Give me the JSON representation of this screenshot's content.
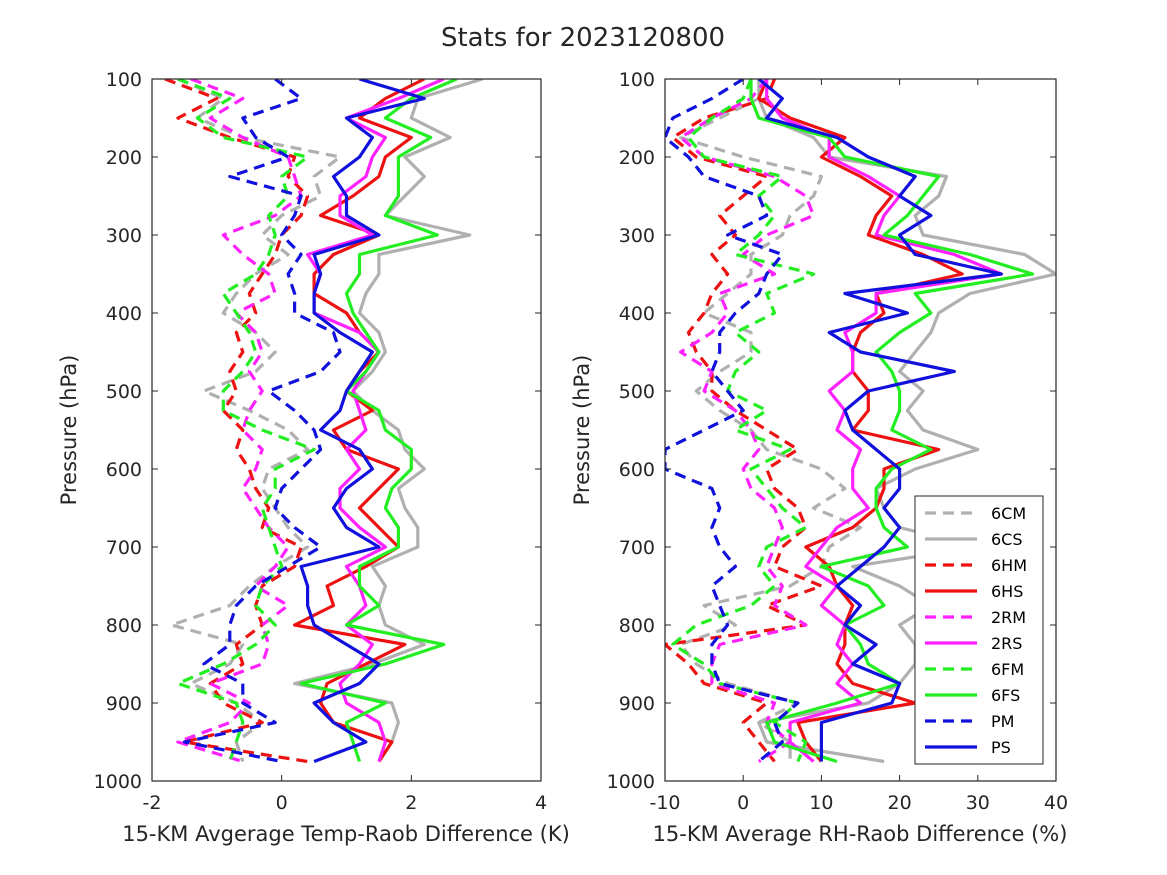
{
  "page_title": "Stats for 2023120800",
  "colors": {
    "6C": "#b0b0b0",
    "6H": "#ee1111",
    "2R": "#ff22ff",
    "6F": "#22ee22",
    "P": "#1111dd"
  },
  "chart_data": [
    {
      "type": "line",
      "xlabel": "15-KM Avgerage Temp-Raob Difference (K)",
      "ylabel": "Pressure (hPa)",
      "xlim": [
        -2,
        4
      ],
      "ylim": [
        1000,
        100
      ],
      "y_reversed": true,
      "xticks": [
        "-2",
        "0",
        "2",
        "4"
      ],
      "yticks": [
        "100",
        "200",
        "300",
        "400",
        "500",
        "600",
        "700",
        "800",
        "900",
        "1000"
      ],
      "grid": false,
      "levels": [
        100,
        125,
        150,
        175,
        200,
        225,
        250,
        275,
        300,
        325,
        350,
        375,
        400,
        425,
        450,
        475,
        500,
        525,
        550,
        575,
        600,
        625,
        650,
        675,
        700,
        725,
        750,
        775,
        800,
        825,
        850,
        875,
        900,
        925,
        950,
        975
      ],
      "series": [
        {
          "name": "6CM",
          "color": "6C",
          "dash": true,
          "values": [
            -1.6,
            -0.9,
            -1.3,
            -0.6,
            0.9,
            0.5,
            0.6,
            0,
            -0.3,
            0.1,
            -0.4,
            -0.7,
            -0.9,
            -0.4,
            -0.1,
            -0.4,
            -1.2,
            -0.5,
            0.1,
            0.4,
            -0.2,
            -0.3,
            -0.1,
            0.1,
            0.4,
            -0.1,
            -0.5,
            -0.8,
            -1.7,
            -0.6,
            -0.8,
            -1.4,
            -0.7,
            -0.3,
            -0.7,
            -0.6
          ]
        },
        {
          "name": "6CS",
          "color": "6C",
          "dash": false,
          "values": [
            3.1,
            2.1,
            2.0,
            2.6,
            1.9,
            2.2,
            1.9,
            1.6,
            2.9,
            1.5,
            1.5,
            1.3,
            1.2,
            1.5,
            1.6,
            1.4,
            1.1,
            1.4,
            1.8,
            1.9,
            2.2,
            1.8,
            1.9,
            2.1,
            2.1,
            1.4,
            1.6,
            1.5,
            1.6,
            2.2,
            1.4,
            0.2,
            1.7,
            1.8,
            1.7,
            1.5
          ]
        },
        {
          "name": "6HM",
          "color": "6H",
          "dash": true,
          "values": [
            -1.8,
            -1.0,
            -1.6,
            -0.8,
            0.2,
            0.1,
            0.4,
            0.3,
            0.0,
            -0.1,
            -0.3,
            -0.5,
            -0.4,
            -0.7,
            -0.6,
            -0.8,
            -0.7,
            -0.9,
            -0.6,
            -0.7,
            -0.5,
            -0.4,
            -0.2,
            -0.3,
            0.3,
            0.2,
            -0.3,
            -0.4,
            -0.3,
            -0.7,
            -0.6,
            -1.1,
            -0.9,
            -0.3,
            -1.5,
            0.4
          ]
        },
        {
          "name": "6HS",
          "color": "6H",
          "dash": false,
          "values": [
            2.2,
            1.6,
            1.2,
            2.0,
            1.6,
            1.5,
            1.1,
            0.6,
            1.5,
            0.8,
            0.5,
            0.5,
            1.0,
            1.2,
            1.5,
            1.2,
            1.0,
            1.4,
            0.8,
            1.0,
            1.8,
            1.5,
            1.2,
            1.5,
            1.8,
            1.3,
            0.7,
            0.8,
            0.2,
            1.9,
            1.3,
            0.7,
            0.6,
            0.8,
            1.7,
            1.5
          ]
        },
        {
          "name": "2RM",
          "color": "2R",
          "dash": true,
          "values": [
            -1.4,
            -0.6,
            -1.1,
            -0.6,
            0.1,
            0.2,
            0.3,
            -0.1,
            -0.9,
            -0.6,
            -0.2,
            -0.1,
            -0.7,
            -0.4,
            -0.3,
            -0.5,
            -0.3,
            -0.5,
            -0.6,
            -0.3,
            -0.4,
            -0.6,
            -0.4,
            -0.2,
            0.1,
            -0.1,
            -0.4,
            0.1,
            -0.3,
            -0.2,
            -0.3,
            -1.1,
            -0.5,
            -0.8,
            -1.6,
            -0.6
          ]
        },
        {
          "name": "2RS",
          "color": "2R",
          "dash": false,
          "values": [
            2.5,
            1.8,
            1.0,
            1.6,
            1.4,
            1.3,
            0.9,
            0.9,
            1.4,
            0.4,
            0.6,
            0.5,
            0.5,
            1.2,
            1.5,
            1.3,
            1.1,
            1.2,
            1.3,
            1.0,
            1.2,
            0.9,
            0.9,
            1.2,
            1.6,
            1.0,
            1.2,
            1.3,
            1.0,
            1.4,
            1.2,
            0.9,
            1.0,
            1.5,
            1.6,
            1.5
          ]
        },
        {
          "name": "6FM",
          "color": "6F",
          "dash": true,
          "values": [
            -1.6,
            -0.8,
            -1.3,
            -0.9,
            0.4,
            0.0,
            0.1,
            -0.2,
            -0.1,
            -0.2,
            -0.4,
            -0.9,
            -0.7,
            -0.5,
            -0.4,
            -0.6,
            -0.9,
            -0.9,
            -0.3,
            0.5,
            -0.1,
            -0.1,
            -0.3,
            -0.2,
            -0.1,
            0.0,
            -0.3,
            -0.4,
            -0.1,
            -0.4,
            -0.9,
            -1.6,
            -0.7,
            -0.6,
            -0.7,
            -0.8
          ]
        },
        {
          "name": "6FS",
          "color": "6F",
          "dash": false,
          "values": [
            2.7,
            2.0,
            1.6,
            2.3,
            1.8,
            1.8,
            1.8,
            1.6,
            2.4,
            1.2,
            1.2,
            1.0,
            1.1,
            1.3,
            1.5,
            1.3,
            1.0,
            1.5,
            1.6,
            2.0,
            2.0,
            1.7,
            1.6,
            1.8,
            1.8,
            1.2,
            1.2,
            1.5,
            1.0,
            2.5,
            1.6,
            0.3,
            1.6,
            1.0,
            1.1,
            1.2
          ]
        },
        {
          "name": "PM",
          "color": "P",
          "dash": true,
          "values": [
            -0.1,
            0.3,
            -0.6,
            -0.4,
            0.1,
            -0.8,
            0.3,
            0.2,
            0.0,
            0.3,
            0.1,
            0.2,
            0.2,
            0.8,
            0.9,
            0.6,
            -0.2,
            0.2,
            0.5,
            0.6,
            0.3,
            0.0,
            -0.1,
            0.2,
            0.6,
            0.1,
            -0.4,
            -0.7,
            -0.8,
            -0.8,
            -1.2,
            -0.6,
            -0.6,
            -0.1,
            -1.5,
            0.0
          ]
        },
        {
          "name": "PS",
          "color": "P",
          "dash": false,
          "values": [
            1.2,
            2.2,
            1.0,
            1.4,
            1.2,
            0.8,
            1.0,
            1.0,
            1.5,
            0.5,
            0.6,
            0.5,
            0.5,
            0.9,
            1.4,
            1.2,
            1.0,
            0.9,
            0.6,
            1.2,
            1.4,
            1.0,
            0.8,
            1.0,
            1.5,
            0.3,
            0.4,
            0.4,
            0.5,
            1.0,
            1.5,
            1.2,
            0.5,
            0.8,
            1.3,
            0.5
          ]
        }
      ]
    },
    {
      "type": "line",
      "xlabel": "15-KM Average RH-Raob Difference (%)",
      "ylabel": "Pressure (hPa)",
      "xlim": [
        -10,
        40
      ],
      "ylim": [
        1000,
        100
      ],
      "y_reversed": true,
      "xticks": [
        "-10",
        "0",
        "10",
        "20",
        "30",
        "40"
      ],
      "yticks": [
        "100",
        "200",
        "300",
        "400",
        "500",
        "600",
        "700",
        "800",
        "900",
        "1000"
      ],
      "grid": false,
      "legend_position": "lower-right",
      "levels": [
        100,
        125,
        150,
        175,
        200,
        225,
        250,
        275,
        300,
        325,
        350,
        375,
        400,
        425,
        450,
        475,
        500,
        525,
        550,
        575,
        600,
        625,
        650,
        675,
        700,
        725,
        750,
        775,
        800,
        825,
        850,
        875,
        900,
        925,
        950,
        975
      ],
      "series": [
        {
          "name": "6CM",
          "color": "6C",
          "dash": true,
          "values": [
            3,
            2,
            -3,
            -8,
            0,
            10,
            9,
            6,
            5,
            1,
            1,
            -2,
            -5,
            1,
            1,
            -3,
            -6,
            -3,
            1,
            3,
            10,
            13,
            9,
            15,
            11,
            10,
            6,
            -5,
            -1,
            -8,
            -6,
            -2,
            7,
            2,
            6,
            6
          ]
        },
        {
          "name": "6CS",
          "color": "6C",
          "dash": false,
          "values": [
            2,
            2,
            3,
            9,
            11,
            26,
            25,
            22,
            23,
            36,
            40,
            29,
            25,
            24,
            22,
            20,
            23,
            21,
            23,
            30,
            22,
            17,
            18,
            20,
            30,
            14,
            20,
            24,
            20,
            22,
            22,
            20,
            16,
            2,
            3,
            18
          ]
        },
        {
          "name": "6HM",
          "color": "6H",
          "dash": true,
          "values": [
            4,
            3,
            -5,
            -9,
            -6,
            3,
            0,
            -3,
            -1,
            -4,
            -2,
            -4,
            -5,
            -7,
            -6,
            -4,
            -4,
            -1,
            3,
            7,
            3,
            4,
            7,
            8,
            5,
            4,
            10,
            3,
            8,
            -10,
            -7,
            -5,
            3,
            0,
            2,
            4
          ]
        },
        {
          "name": "6HS",
          "color": "6H",
          "dash": false,
          "values": [
            3,
            2,
            6,
            13,
            10,
            15,
            19,
            17,
            16,
            23,
            28,
            17,
            18,
            15,
            14,
            14,
            16,
            16,
            14,
            25,
            18,
            18,
            17,
            14,
            8,
            11,
            12,
            14,
            13,
            13,
            12,
            14,
            22,
            7,
            8,
            10
          ]
        },
        {
          "name": "2RM",
          "color": "2R",
          "dash": true,
          "values": [
            3,
            1,
            -4,
            -8,
            -5,
            4,
            8,
            9,
            3,
            0,
            4,
            -3,
            -2,
            -4,
            -8,
            -4,
            -5,
            -1,
            1,
            2,
            0,
            1,
            4,
            5,
            4,
            3,
            5,
            4,
            8,
            -3,
            -4,
            -4,
            4,
            3,
            6,
            2
          ]
        },
        {
          "name": "2RS",
          "color": "2R",
          "dash": false,
          "values": [
            3,
            3,
            5,
            11,
            11,
            16,
            20,
            18,
            17,
            27,
            33,
            17,
            17,
            13,
            14,
            14,
            11,
            13,
            12,
            15,
            14,
            14,
            16,
            12,
            10,
            8,
            12,
            10,
            13,
            12,
            14,
            12,
            15,
            6,
            6,
            9
          ]
        },
        {
          "name": "6FM",
          "color": "6F",
          "dash": true,
          "values": [
            1,
            0,
            -4,
            -7,
            -5,
            5,
            2,
            4,
            2,
            -1,
            9,
            3,
            4,
            -1,
            2,
            -1,
            -2,
            3,
            -1,
            6,
            1,
            3,
            5,
            8,
            3,
            2,
            4,
            1,
            -6,
            -9,
            -5,
            -3,
            7,
            4,
            8,
            7
          ]
        },
        {
          "name": "6FS",
          "color": "6F",
          "dash": false,
          "values": [
            1,
            1,
            2,
            11,
            13,
            25,
            23,
            21,
            18,
            29,
            37,
            22,
            24,
            20,
            17,
            19,
            20,
            20,
            19,
            24,
            19,
            17,
            17,
            18,
            21,
            10,
            16,
            18,
            13,
            15,
            16,
            20,
            12,
            3,
            4,
            12
          ]
        },
        {
          "name": "PM",
          "color": "P",
          "dash": true,
          "values": [
            0,
            -4,
            -9,
            -10,
            -7,
            -5,
            2,
            3,
            -2,
            5,
            3,
            2,
            -1,
            -3,
            -3,
            -4,
            -2,
            0,
            -5,
            -10,
            -10,
            -4,
            -3,
            -4,
            -3,
            -1,
            -4,
            -3,
            -2,
            -4,
            -4,
            -3,
            7,
            4,
            5,
            2
          ]
        },
        {
          "name": "PS",
          "color": "P",
          "dash": false,
          "values": [
            2,
            5,
            3,
            12,
            16,
            22,
            20,
            24,
            20,
            22,
            33,
            13,
            21,
            11,
            15,
            27,
            16,
            13,
            14,
            17,
            20,
            20,
            18,
            20,
            18,
            15,
            12,
            15,
            13,
            17,
            14,
            20,
            19,
            10,
            10,
            10
          ]
        }
      ]
    }
  ]
}
